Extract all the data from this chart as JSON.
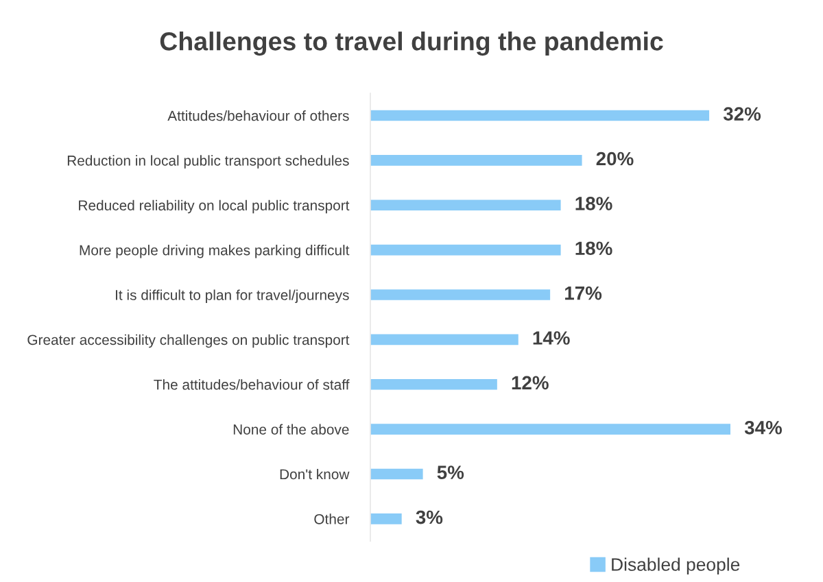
{
  "chart_data": {
    "type": "bar",
    "orientation": "horizontal",
    "title": "Challenges to travel during the pandemic",
    "categories": [
      "Attitudes/behaviour of others",
      "Reduction in local public transport schedules",
      "Reduced reliability on local public transport",
      "More people driving makes parking difficult",
      "It is difficult to plan for travel/journeys",
      "Greater accessibility challenges on public transport",
      "The attitudes/behaviour of staff",
      "None of the above",
      "Don't know",
      "Other"
    ],
    "series": [
      {
        "name": "Disabled people",
        "color": "#89cbf7",
        "values": [
          32,
          20,
          18,
          18,
          17,
          14,
          12,
          34,
          5,
          3
        ],
        "value_labels": [
          "32%",
          "20%",
          "18%",
          "18%",
          "17%",
          "14%",
          "12%",
          "34%",
          "5%",
          "3%"
        ]
      }
    ],
    "tick_labels": "y",
    "grid": false,
    "legend": "bottom right"
  }
}
